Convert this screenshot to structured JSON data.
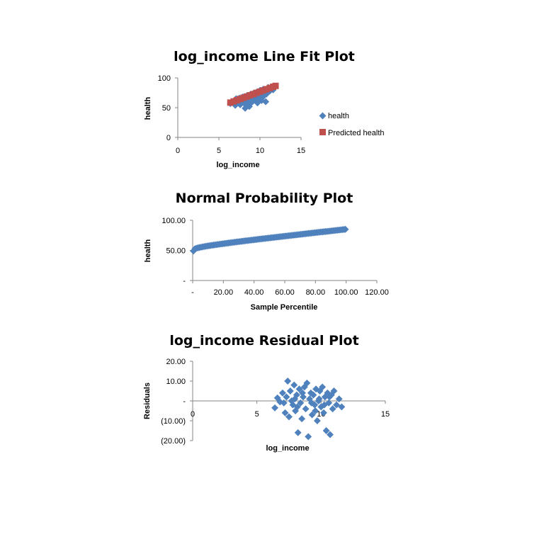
{
  "colors": {
    "actual": "#4f81bd",
    "predicted": "#c0504d",
    "axis": "#868686"
  },
  "chart_data": [
    {
      "type": "scatter",
      "title": "log_income Line Fit  Plot",
      "xlabel": "log_income",
      "ylabel": "health",
      "xlim": [
        0,
        15
      ],
      "ylim": [
        0,
        100
      ],
      "xticks": [
        0,
        5,
        10,
        15
      ],
      "xtick_labels": [
        "0",
        "5",
        "10",
        "15"
      ],
      "yticks": [
        0,
        50,
        100
      ],
      "ytick_labels": [
        "0",
        "50",
        "100"
      ],
      "legend_position": "right",
      "legend": [
        "health",
        "Predicted health"
      ],
      "series": [
        {
          "name": "health",
          "marker": "diamond",
          "points": [
            [
              6.4,
              57
            ],
            [
              6.8,
              60
            ],
            [
              7.0,
              54
            ],
            [
              7.2,
              62
            ],
            [
              7.4,
              58
            ],
            [
              7.5,
              66
            ],
            [
              7.6,
              55
            ],
            [
              7.8,
              63
            ],
            [
              7.9,
              68
            ],
            [
              8.0,
              60
            ],
            [
              8.1,
              57
            ],
            [
              8.2,
              49
            ],
            [
              8.3,
              64
            ],
            [
              8.4,
              70
            ],
            [
              8.5,
              61
            ],
            [
              8.6,
              66
            ],
            [
              8.7,
              52
            ],
            [
              8.8,
              72
            ],
            [
              8.9,
              65
            ],
            [
              9.0,
              59
            ],
            [
              9.1,
              69
            ],
            [
              9.2,
              74
            ],
            [
              9.3,
              63
            ],
            [
              9.4,
              67
            ],
            [
              9.5,
              71
            ],
            [
              9.6,
              76
            ],
            [
              9.7,
              58
            ],
            [
              9.8,
              68
            ],
            [
              9.9,
              73
            ],
            [
              10.0,
              79
            ],
            [
              10.1,
              66
            ],
            [
              10.2,
              62
            ],
            [
              10.3,
              75
            ],
            [
              10.4,
              81
            ],
            [
              10.5,
              70
            ],
            [
              10.6,
              77
            ],
            [
              10.7,
              60
            ],
            [
              10.8,
              73
            ],
            [
              11.0,
              84
            ],
            [
              11.2,
              78
            ],
            [
              11.4,
              82
            ],
            [
              11.6,
              80
            ],
            [
              11.8,
              85
            ],
            [
              7.1,
              65
            ],
            [
              8.45,
              55
            ],
            [
              9.15,
              61
            ],
            [
              9.75,
              64
            ],
            [
              10.35,
              69
            ]
          ]
        },
        {
          "name": "Predicted health",
          "marker": "square",
          "points": [
            [
              6.4,
              58.5
            ],
            [
              6.8,
              60.5
            ],
            [
              7.2,
              62.6
            ],
            [
              7.6,
              64.6
            ],
            [
              8.0,
              66.7
            ],
            [
              8.4,
              68.7
            ],
            [
              8.8,
              70.8
            ],
            [
              9.2,
              72.8
            ],
            [
              9.6,
              74.9
            ],
            [
              10.0,
              76.9
            ],
            [
              10.4,
              79.0
            ],
            [
              10.8,
              81.0
            ],
            [
              11.2,
              83.1
            ],
            [
              11.6,
              85.1
            ],
            [
              11.9,
              86.6
            ]
          ]
        }
      ]
    },
    {
      "type": "scatter",
      "title": "Normal Probability Plot",
      "xlabel": "Sample Percentile",
      "ylabel": "health",
      "xlim": [
        0,
        120
      ],
      "ylim": [
        0,
        100
      ],
      "xticks": [
        0,
        20,
        40,
        60,
        80,
        100,
        120
      ],
      "xtick_labels": [
        "-",
        "20.00",
        "40.00",
        "60.00",
        "80.00",
        "100.00",
        "120.00"
      ],
      "yticks": [
        0,
        50,
        100
      ],
      "ytick_labels": [
        "-",
        "50.00",
        "100.00"
      ],
      "series": [
        {
          "name": "health",
          "marker": "diamond",
          "percentiles": [
            0.5,
            99.5
          ],
          "values_from": 49,
          "values_to": 85,
          "count": 100
        }
      ]
    },
    {
      "type": "scatter",
      "title": "log_income  Residual Plot",
      "xlabel": "log_income",
      "ylabel": "Residuals",
      "xlim": [
        0,
        15
      ],
      "ylim": [
        -20,
        20
      ],
      "xticks": [
        0,
        5,
        10,
        15
      ],
      "xtick_labels": [
        "0",
        "5",
        "10",
        "15"
      ],
      "yticks": [
        -20,
        -10,
        0,
        10,
        20
      ],
      "ytick_labels": [
        "(20.00)",
        "(10.00)",
        "-",
        "10.00",
        "20.00"
      ],
      "series": [
        {
          "name": "Residuals",
          "marker": "diamond",
          "points": [
            [
              6.4,
              -3.5
            ],
            [
              6.6,
              1.5
            ],
            [
              6.8,
              -0.5
            ],
            [
              7.0,
              4
            ],
            [
              7.2,
              -6
            ],
            [
              7.3,
              2
            ],
            [
              7.4,
              10
            ],
            [
              7.5,
              -8
            ],
            [
              7.6,
              5
            ],
            [
              7.7,
              0
            ],
            [
              7.8,
              -2
            ],
            [
              7.9,
              8
            ],
            [
              8.0,
              -5
            ],
            [
              8.1,
              3
            ],
            [
              8.2,
              -16
            ],
            [
              8.3,
              6
            ],
            [
              8.4,
              -1
            ],
            [
              8.5,
              -9
            ],
            [
              8.6,
              2
            ],
            [
              8.7,
              7
            ],
            [
              8.8,
              -4
            ],
            [
              8.9,
              9
            ],
            [
              9.0,
              -18
            ],
            [
              9.1,
              1
            ],
            [
              9.2,
              4
            ],
            [
              9.3,
              -7
            ],
            [
              9.4,
              3
            ],
            [
              9.5,
              -2
            ],
            [
              9.6,
              6
            ],
            [
              9.7,
              -10
            ],
            [
              9.8,
              0
            ],
            [
              9.9,
              5
            ],
            [
              10.0,
              -3
            ],
            [
              10.1,
              7
            ],
            [
              10.2,
              -6
            ],
            [
              10.3,
              2
            ],
            [
              10.4,
              -15
            ],
            [
              10.5,
              4
            ],
            [
              10.6,
              -1
            ],
            [
              10.7,
              -17
            ],
            [
              10.8,
              3
            ],
            [
              10.9,
              -4
            ],
            [
              11.0,
              5
            ],
            [
              11.2,
              -2
            ],
            [
              11.4,
              1
            ],
            [
              11.6,
              -3
            ],
            [
              7.1,
              -1
            ],
            [
              8.15,
              -3
            ],
            [
              9.25,
              -1
            ],
            [
              9.85,
              1
            ],
            [
              10.25,
              -2
            ],
            [
              8.55,
              4
            ],
            [
              9.55,
              -5
            ],
            [
              7.95,
              1
            ],
            [
              10.65,
              2
            ]
          ]
        }
      ]
    }
  ]
}
